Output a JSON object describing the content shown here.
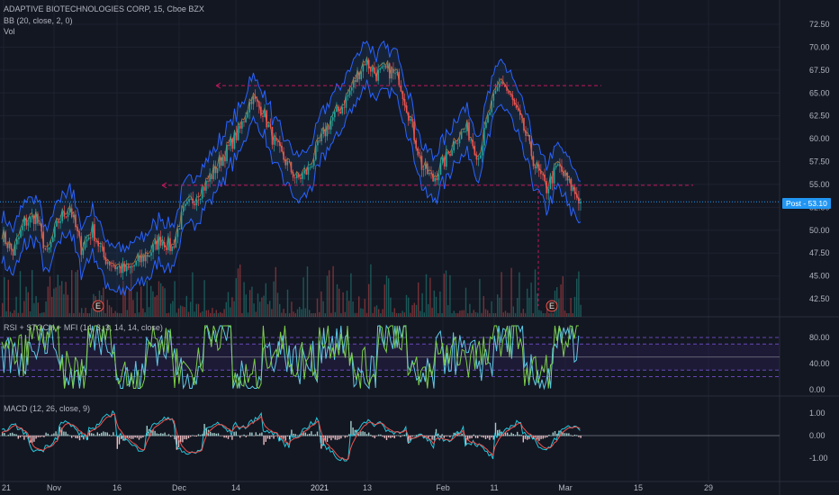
{
  "header": {
    "symbol_line": "ADAPTIVE BIOTECHNOLOGIES CORP, 15, Cboe BZX",
    "bb_label": "BB (20, close, 2, 0)",
    "vol_label": "Vol"
  },
  "price_badge": {
    "prefix": "Post",
    "value": "53.10"
  },
  "colors": {
    "background": "#131722",
    "grid": "#1e2230",
    "up": "#26a69a",
    "down": "#ef5350",
    "bb_band": "#2962ff",
    "bb_fill": "#1e3a5f",
    "level_line": "#c2185b",
    "last_price": "#2196f3",
    "stoch_k": "#5ec9e6",
    "stoch_d": "#7ccf4a",
    "macd_line": "#26c6da",
    "signal_line": "#ef5350"
  },
  "events": [
    {
      "label": "E"
    },
    {
      "label": "E"
    }
  ],
  "osc": {
    "label": "RSI + STOCH + MFI (14, 3, 3, 14, 14, close)"
  },
  "macd": {
    "label": "MACD (12, 26, close, 9)"
  },
  "chart_data": [
    {
      "type": "line",
      "title": "ADAPTIVE BIOTECHNOLOGIES CORP, 15, Cboe BZX",
      "ylim": [
        41,
        76
      ],
      "y_ticks": [
        "72.50",
        "70.00",
        "67.50",
        "65.00",
        "62.50",
        "60.00",
        "57.50",
        "55.00",
        "52.50",
        "50.00",
        "47.50",
        "45.00",
        "42.50"
      ],
      "x_ticks": [
        "21",
        "Nov",
        "16",
        "Dec",
        "14",
        "2021",
        "13",
        "Feb",
        "11",
        "Mar",
        "15",
        "29"
      ],
      "last_price": 53.1,
      "resistance_levels": [
        65.8,
        54.9
      ],
      "approx_close_path": [
        {
          "x": 0,
          "y": 49.5
        },
        {
          "x": 2,
          "y": 47.5
        },
        {
          "x": 4,
          "y": 50.8
        },
        {
          "x": 6,
          "y": 51.5
        },
        {
          "x": 8,
          "y": 47.2
        },
        {
          "x": 10,
          "y": 51.0
        },
        {
          "x": 12,
          "y": 52.5
        },
        {
          "x": 14,
          "y": 48.0
        },
        {
          "x": 16,
          "y": 50.0
        },
        {
          "x": 18,
          "y": 47.0
        },
        {
          "x": 20,
          "y": 46.0
        },
        {
          "x": 22,
          "y": 45.5
        },
        {
          "x": 24,
          "y": 46.5
        },
        {
          "x": 26,
          "y": 47.5
        },
        {
          "x": 28,
          "y": 49.0
        },
        {
          "x": 30,
          "y": 48.0
        },
        {
          "x": 32,
          "y": 52.0
        },
        {
          "x": 34,
          "y": 53.5
        },
        {
          "x": 36,
          "y": 55.0
        },
        {
          "x": 38,
          "y": 57.0
        },
        {
          "x": 40,
          "y": 59.0
        },
        {
          "x": 42,
          "y": 61.0
        },
        {
          "x": 44,
          "y": 64.5
        },
        {
          "x": 46,
          "y": 63.0
        },
        {
          "x": 48,
          "y": 59.5
        },
        {
          "x": 50,
          "y": 57.5
        },
        {
          "x": 52,
          "y": 55.5
        },
        {
          "x": 54,
          "y": 56.5
        },
        {
          "x": 56,
          "y": 59.5
        },
        {
          "x": 58,
          "y": 62.0
        },
        {
          "x": 60,
          "y": 63.5
        },
        {
          "x": 62,
          "y": 66.0
        },
        {
          "x": 64,
          "y": 68.5
        },
        {
          "x": 66,
          "y": 67.0
        },
        {
          "x": 68,
          "y": 67.5
        },
        {
          "x": 70,
          "y": 66.5
        },
        {
          "x": 72,
          "y": 62.0
        },
        {
          "x": 74,
          "y": 57.0
        },
        {
          "x": 76,
          "y": 55.5
        },
        {
          "x": 78,
          "y": 57.5
        },
        {
          "x": 80,
          "y": 60.0
        },
        {
          "x": 82,
          "y": 61.0
        },
        {
          "x": 84,
          "y": 58.0
        },
        {
          "x": 86,
          "y": 63.0
        },
        {
          "x": 88,
          "y": 66.5
        },
        {
          "x": 90,
          "y": 64.0
        },
        {
          "x": 92,
          "y": 61.0
        },
        {
          "x": 94,
          "y": 57.0
        },
        {
          "x": 96,
          "y": 54.5
        },
        {
          "x": 98,
          "y": 57.0
        },
        {
          "x": 100,
          "y": 55.0
        },
        {
          "x": 102,
          "y": 53.1
        }
      ]
    },
    {
      "type": "line",
      "title": "RSI + STOCH + MFI (14, 3, 3, 14, 14, close)",
      "ylim": [
        0,
        100
      ],
      "y_ticks": [
        "80.00",
        "40.00",
        "0.00"
      ],
      "bands": [
        70,
        30
      ],
      "series": [
        {
          "values": [
            50,
            80,
            20,
            85,
            15,
            70,
            30,
            90,
            10,
            60,
            40,
            75,
            25,
            85,
            15,
            55,
            45,
            80,
            20,
            70
          ]
        }
      ]
    },
    {
      "type": "line",
      "title": "MACD (12, 26, close, 9)",
      "ylim": [
        -1.4,
        1.4
      ],
      "y_ticks": [
        "1.00",
        "0.00",
        "-1.00"
      ],
      "series": [
        {
          "values": [
            0.1,
            -0.4,
            0.3,
            0.8,
            -0.3,
            0.5,
            -0.6,
            0.2,
            0.9,
            -0.2,
            0.4,
            -0.9,
            0.3,
            0.6,
            -0.5,
            0.2,
            -0.8,
            0.4,
            -0.3,
            0.1
          ]
        }
      ]
    }
  ]
}
